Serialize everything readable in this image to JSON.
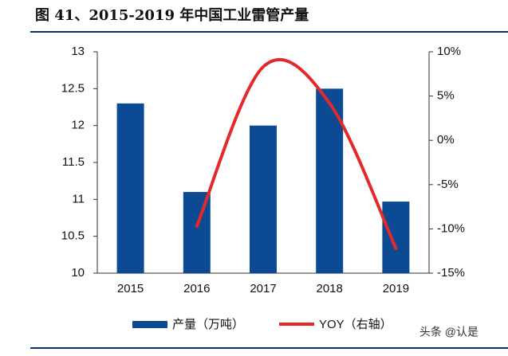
{
  "chart_data": {
    "type": "bar",
    "title": "图 41、2015-2019 年中国工业雷管产量",
    "categories": [
      "2015",
      "2016",
      "2017",
      "2018",
      "2019"
    ],
    "series": [
      {
        "name": "产量（万吨）",
        "type": "bar",
        "color": "#0d4a94",
        "values": [
          12.3,
          11.1,
          12.0,
          12.5,
          10.97
        ]
      },
      {
        "name": "YOY（右轴）",
        "type": "line",
        "axis": "y2",
        "color": "#e32a2a",
        "values": [
          null,
          -9.7,
          8.3,
          4.2,
          -12.2
        ]
      }
    ],
    "ylim": [
      10,
      13
    ],
    "yticks": [
      10,
      10.5,
      11,
      11.5,
      12,
      12.5,
      13
    ],
    "y2lim": [
      -15,
      10
    ],
    "y2ticks": [
      {
        "value": -15,
        "label": "-15%"
      },
      {
        "value": -10,
        "label": "-10%"
      },
      {
        "value": -5,
        "label": "-5%"
      },
      {
        "value": 0,
        "label": "0%"
      },
      {
        "value": 5,
        "label": "5%"
      },
      {
        "value": 10,
        "label": "10%"
      }
    ],
    "legend": "bottom",
    "watermark": "头条 @认是"
  }
}
